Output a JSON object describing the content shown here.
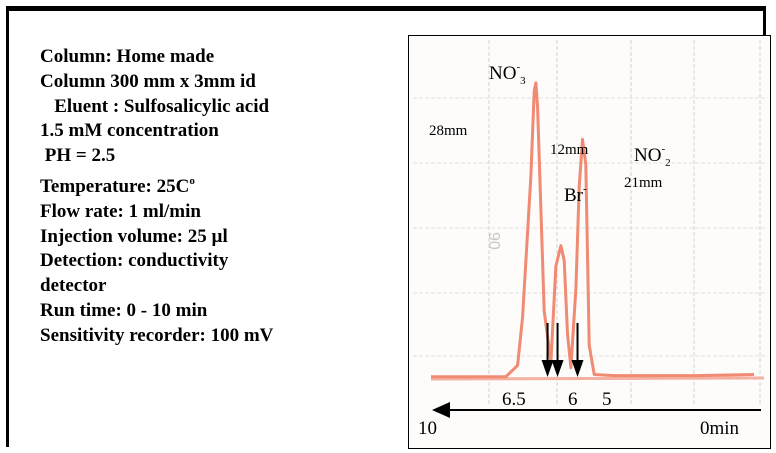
{
  "conditions": {
    "lines": [
      {
        "text": "Column: Home made"
      },
      {
        "text": "Column 300 mm x 3mm id"
      },
      {
        "text": "   Eluent : Sulfosalicylic acid"
      },
      {
        "text": "1.5 mM concentration"
      },
      {
        "text": " PH = 2.5"
      },
      {
        "text": "Temperature: 25C",
        "sup": "o"
      },
      {
        "text": "Flow rate: 1 ml/min"
      },
      {
        "text": "Injection volume: 25 µl"
      },
      {
        "text": "Detection: conductivity"
      },
      {
        "text": "detector"
      },
      {
        "text": "Run time: 0 - 10 min"
      },
      {
        "text": "Sensitivity recorder: 100 mV"
      }
    ]
  },
  "chart_data": {
    "type": "line",
    "xlim": [
      10,
      0
    ],
    "x_axis_labels": {
      "start": "10",
      "end": "0min"
    },
    "grid": true,
    "stray_mark": "90",
    "trace_color": "#f08a72",
    "series": [
      {
        "x": [
          10,
          8.6,
          7.75,
          7.4,
          7.25,
          7.0,
          6.9,
          6.85,
          6.8,
          6.6,
          6.4,
          6.25,
          6.1,
          6.0,
          5.9,
          5.8,
          5.65,
          5.55,
          5.45,
          5.35,
          5.25,
          5.1,
          4.5,
          3.5,
          2.0,
          0.3
        ],
        "y": [
          2,
          2,
          2,
          12,
          55,
          180,
          255,
          262,
          240,
          60,
          15,
          100,
          118,
          105,
          40,
          10,
          80,
          170,
          212,
          190,
          30,
          4,
          3,
          3,
          3,
          4
        ]
      }
    ],
    "peak_labels": [
      {
        "ion": "NO",
        "sup": "-",
        "sub": "3",
        "height": "28mm"
      },
      {
        "ion": "Br",
        "sup": "-",
        "height": "12mm"
      },
      {
        "ion": "NO",
        "sup": "-",
        "sub": "2",
        "height": "21mm"
      }
    ],
    "retention_markers": [
      {
        "label": "6.5",
        "x": 6.5
      },
      {
        "label": "6",
        "x": 6.2
      },
      {
        "label": "5",
        "x": 5.6
      }
    ]
  }
}
